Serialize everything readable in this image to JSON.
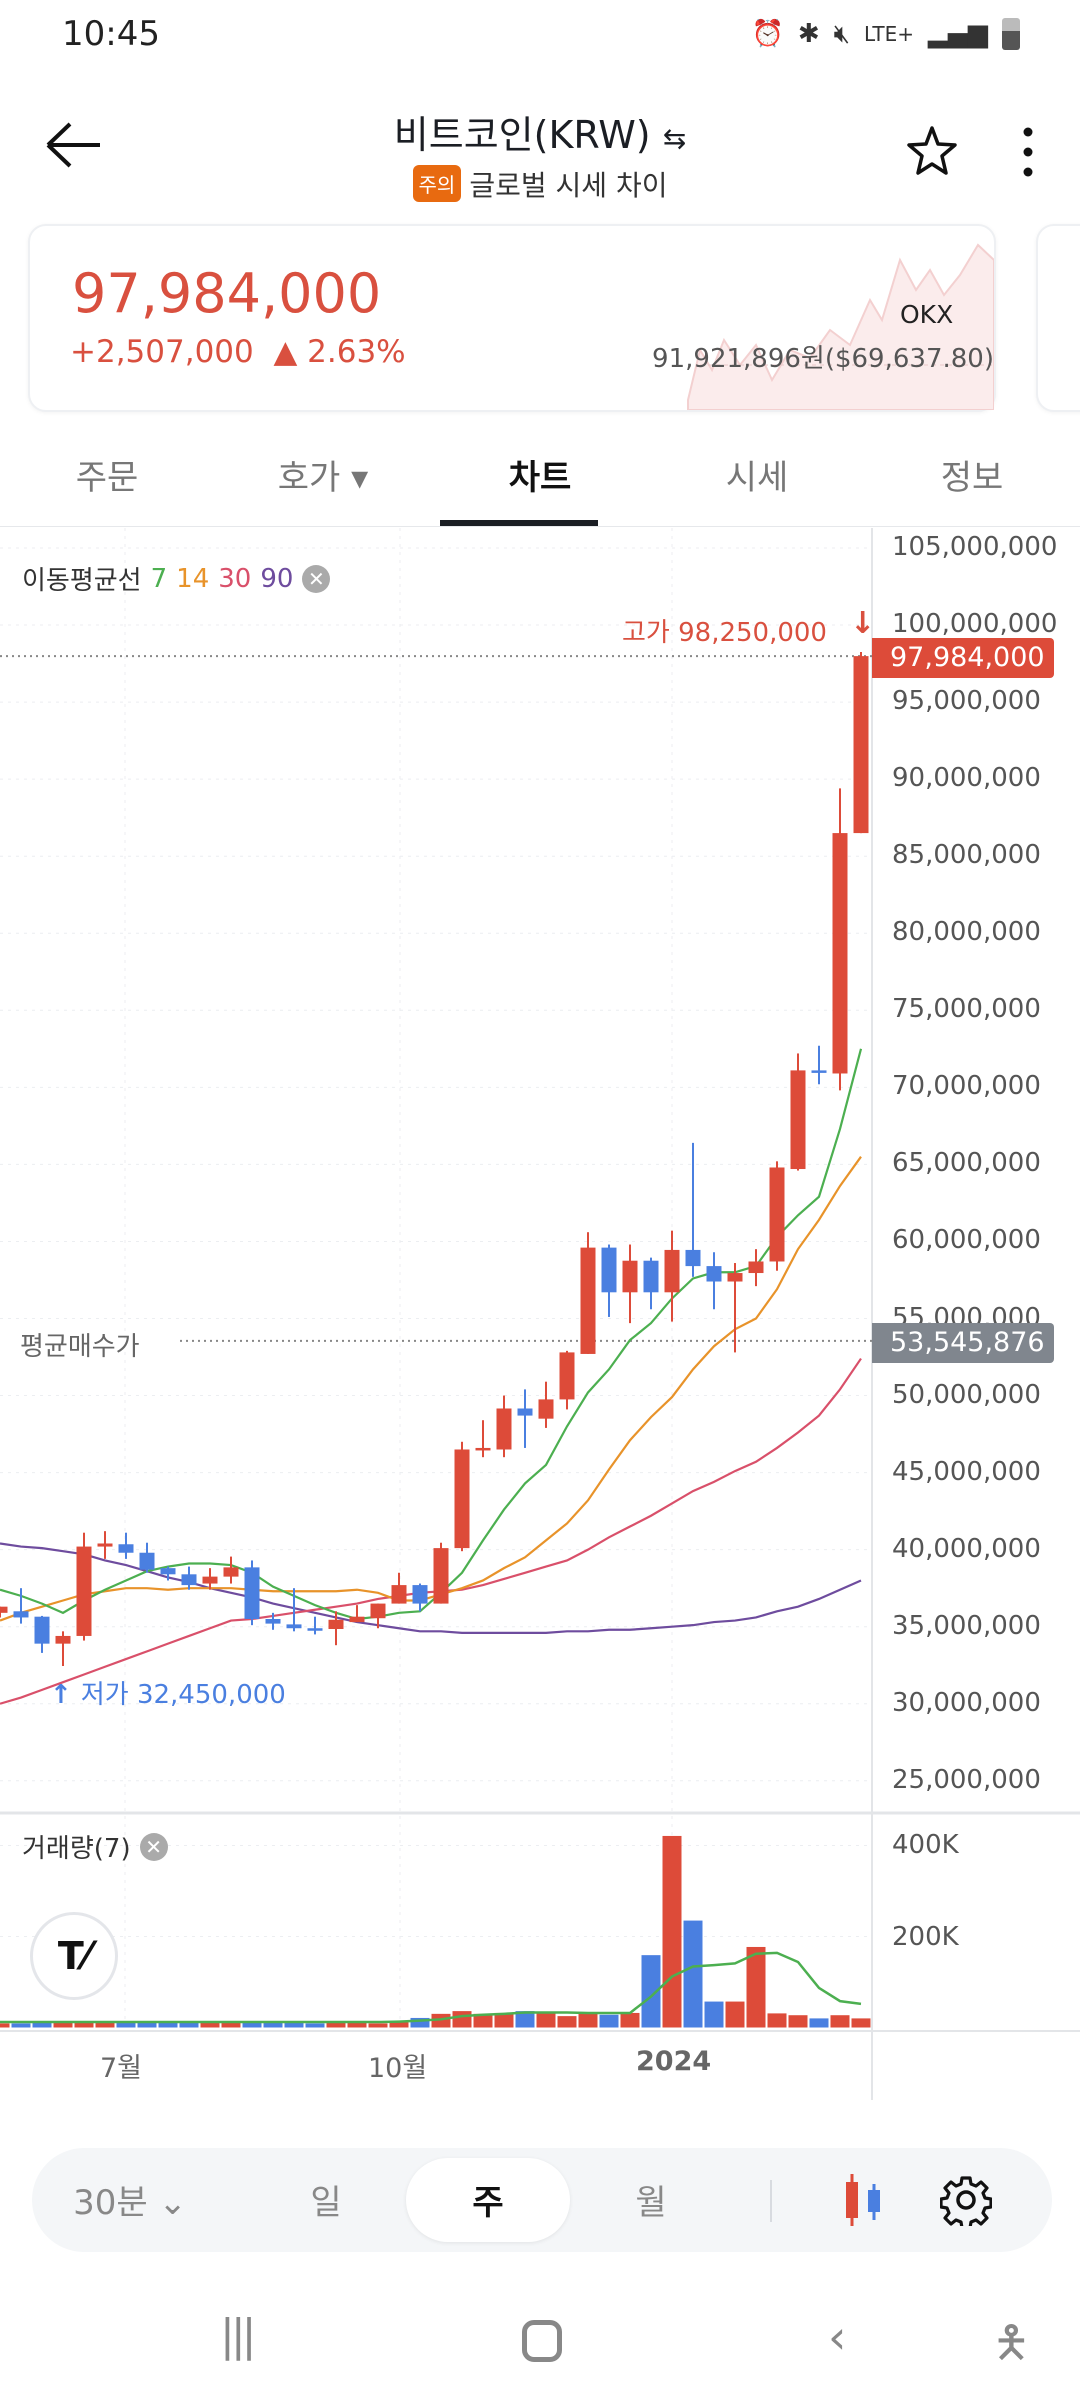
{
  "status_bar": {
    "time": "10:45",
    "network": "LTE+"
  },
  "header": {
    "title": "비트코인(KRW)",
    "swap_icon": "swap-arrows-icon",
    "warning_badge": "주의",
    "subtitle": "글로벌 시세 차이"
  },
  "ticker": {
    "price": "97,984,000",
    "change": "+2,507,000",
    "change_pct": "▲ 2.63%",
    "exchange": "OKX",
    "global_price": "91,921,896원($69,637.80)"
  },
  "tabs": [
    {
      "label": "주문"
    },
    {
      "label": "호가 ▾"
    },
    {
      "label": "차트",
      "active": true
    },
    {
      "label": "시세"
    },
    {
      "label": "정보"
    }
  ],
  "legend": {
    "label": "이동평균선",
    "ma": [
      {
        "period": "7",
        "color": "#4caf50"
      },
      {
        "period": "14",
        "color": "#e8932a"
      },
      {
        "period": "30",
        "color": "#d9506a"
      },
      {
        "period": "90",
        "color": "#6e4c9e"
      }
    ]
  },
  "volume_legend": "거래량(7)",
  "chart_data": {
    "type": "candlestick",
    "interval": "주",
    "ylim": [
      25000000,
      105000000
    ],
    "y_ticks": [
      "105,000,000",
      "100,000,000",
      "95,000,000",
      "90,000,000",
      "85,000,000",
      "80,000,000",
      "75,000,000",
      "70,000,000",
      "65,000,000",
      "60,000,000",
      "55,000,000",
      "50,000,000",
      "45,000,000",
      "40,000,000",
      "35,000,000",
      "30,000,000",
      "25,000,000"
    ],
    "x_ticks": [
      "7월",
      "10월",
      "2024"
    ],
    "grid": true,
    "current_price_label": "97,984,000",
    "avg_buy": {
      "label": "평균매수가",
      "value": "53,545,876"
    },
    "high_label": "고가 98,250,000",
    "low_label": "저가 32,450,000",
    "ohlc_millions": [
      [
        35.9,
        36.3,
        35.6,
        36.3
      ],
      [
        36.0,
        37.5,
        35.2,
        35.6
      ],
      [
        35.65,
        35.7,
        33.3,
        33.9
      ],
      [
        33.9,
        34.7,
        32.45,
        34.4
      ],
      [
        34.4,
        41.1,
        34.1,
        40.2
      ],
      [
        40.2,
        41.2,
        39.4,
        40.4
      ],
      [
        40.35,
        41.1,
        39.4,
        39.8
      ],
      [
        39.8,
        40.45,
        38.5,
        38.7
      ],
      [
        38.8,
        38.9,
        38.0,
        38.4
      ],
      [
        38.4,
        38.9,
        37.4,
        37.7
      ],
      [
        37.8,
        38.8,
        37.4,
        38.25
      ],
      [
        38.25,
        39.55,
        37.8,
        38.85
      ],
      [
        38.85,
        39.3,
        35.1,
        35.5
      ],
      [
        35.5,
        35.9,
        34.8,
        35.2
      ],
      [
        35.15,
        37.5,
        34.7,
        34.9
      ],
      [
        34.9,
        35.65,
        34.5,
        34.85
      ],
      [
        34.85,
        36.0,
        33.8,
        35.45
      ],
      [
        35.3,
        36.4,
        35.3,
        35.65
      ],
      [
        35.55,
        36.5,
        34.9,
        36.5
      ],
      [
        36.5,
        38.5,
        36.5,
        37.7
      ],
      [
        37.7,
        37.8,
        36.0,
        36.5
      ],
      [
        36.5,
        40.45,
        36.5,
        40.1
      ],
      [
        40.1,
        47.0,
        39.9,
        46.5
      ],
      [
        46.5,
        48.4,
        46.0,
        46.6
      ],
      [
        46.5,
        50.0,
        46.0,
        49.16
      ],
      [
        49.16,
        50.4,
        46.6,
        48.7
      ],
      [
        48.5,
        50.9,
        47.9,
        49.75
      ],
      [
        49.75,
        52.9,
        49.1,
        52.8
      ],
      [
        52.7,
        60.6,
        52.7,
        59.6
      ],
      [
        59.6,
        59.8,
        55.1,
        56.7
      ],
      [
        56.7,
        59.8,
        54.7,
        58.75
      ],
      [
        58.75,
        58.95,
        55.6,
        56.7
      ],
      [
        56.7,
        60.7,
        54.8,
        59.45
      ],
      [
        59.45,
        66.4,
        57.7,
        58.4
      ],
      [
        58.4,
        59.3,
        55.6,
        57.4
      ],
      [
        57.4,
        58.6,
        52.8,
        57.95
      ],
      [
        57.95,
        59.5,
        57.1,
        58.7
      ],
      [
        58.7,
        65.2,
        58.1,
        64.8
      ],
      [
        64.7,
        72.2,
        64.6,
        71.1
      ],
      [
        71.1,
        72.7,
        70.2,
        71.0
      ],
      [
        70.9,
        89.4,
        69.8,
        86.5
      ],
      [
        86.5,
        98.25,
        86.5,
        97.984
      ]
    ],
    "ma7": [
      37.4,
      37.0,
      36.5,
      35.9,
      36.7,
      37.4,
      38.0,
      38.6,
      38.9,
      39.1,
      39.1,
      39.0,
      38.5,
      37.6,
      37.0,
      36.4,
      35.9,
      35.5,
      35.65,
      35.9,
      36.0,
      37.2,
      38.5,
      40.6,
      42.6,
      44.3,
      45.5,
      48.0,
      50.2,
      51.7,
      53.6,
      54.7,
      56.3,
      57.6,
      58.0,
      58.0,
      58.4,
      60.3,
      61.7,
      62.9,
      67.3,
      72.5
    ],
    "ma14": [
      35.4,
      35.9,
      36.3,
      36.7,
      37.1,
      37.3,
      37.5,
      37.5,
      37.4,
      37.5,
      37.5,
      37.5,
      37.4,
      37.3,
      37.3,
      37.3,
      37.3,
      37.4,
      37.2,
      36.7,
      36.7,
      37.1,
      37.5,
      38.0,
      38.8,
      39.5,
      40.6,
      41.7,
      43.2,
      45.2,
      47.1,
      48.6,
      49.9,
      51.7,
      53.2,
      54.3,
      55.0,
      56.9,
      59.5,
      61.4,
      63.6,
      65.5
    ],
    "ma30": [
      30.0,
      30.4,
      30.9,
      31.4,
      31.9,
      32.4,
      32.9,
      33.4,
      33.9,
      34.4,
      34.9,
      35.4,
      35.5,
      35.7,
      35.9,
      36.1,
      36.3,
      36.5,
      36.8,
      37.0,
      37.2,
      37.3,
      37.4,
      37.7,
      38.1,
      38.5,
      38.9,
      39.3,
      40.0,
      40.8,
      41.5,
      42.2,
      43.0,
      43.8,
      44.4,
      45.1,
      45.7,
      46.6,
      47.6,
      48.7,
      50.4,
      52.4
    ],
    "ma90": [
      40.4,
      40.2,
      40.1,
      39.9,
      39.7,
      39.3,
      39.0,
      38.6,
      38.2,
      37.9,
      37.5,
      37.2,
      36.9,
      36.5,
      36.2,
      35.9,
      35.6,
      35.3,
      35.1,
      34.9,
      34.7,
      34.7,
      34.6,
      34.6,
      34.6,
      34.6,
      34.6,
      34.7,
      34.7,
      34.8,
      34.8,
      34.9,
      35.0,
      35.1,
      35.3,
      35.4,
      35.6,
      36.0,
      36.3,
      36.8,
      37.4,
      38.0
    ],
    "volume_ticks": [
      "400K",
      "200K"
    ],
    "volume_k": [
      9,
      9,
      12,
      11,
      11,
      11,
      12,
      12,
      12,
      12,
      12,
      12,
      14,
      12,
      14,
      9,
      12,
      11,
      9,
      11,
      21,
      30,
      36,
      30,
      32,
      36,
      31,
      25,
      31,
      28,
      32,
      159,
      421,
      235,
      57,
      57,
      177,
      31,
      27,
      20,
      27,
      20
    ],
    "volume_ma7_k": [
      12,
      12,
      12,
      12,
      12,
      12,
      12,
      12,
      12,
      12,
      12,
      12,
      12,
      12,
      12,
      12,
      12,
      12,
      12,
      13,
      15,
      18,
      25,
      28,
      30,
      33,
      33,
      33,
      32,
      32,
      32,
      68,
      112,
      134,
      137,
      141,
      162,
      164,
      144,
      87,
      58,
      52
    ],
    "colors": {
      "up": "#dd4b39",
      "down": "#4a7fe0"
    }
  },
  "interval_bar": {
    "items": [
      "30분 ⌄",
      "일",
      "주",
      "월"
    ],
    "selected": "주",
    "candle_icon": "candle-type-icon",
    "settings_icon": "gear-icon"
  },
  "nav_bar": {
    "recent": "recent-apps-icon",
    "home": "home-icon",
    "back": "back-icon",
    "accessibility": "accessibility-icon"
  }
}
